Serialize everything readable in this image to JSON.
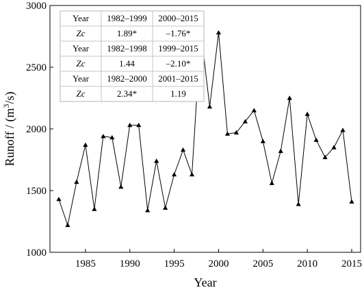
{
  "chart_data": {
    "type": "line",
    "xlabel": "Year",
    "ylabel": "Runoff / (m³/s)",
    "xlim": [
      1981,
      2016
    ],
    "ylim": [
      1000,
      3000
    ],
    "x_ticks": [
      1985,
      1990,
      1995,
      2000,
      2005,
      2010,
      2015
    ],
    "y_ticks": [
      1000,
      1500,
      2000,
      2500,
      3000
    ],
    "marker": "triangle",
    "line_color": "#000000",
    "grid": false,
    "x": [
      1982,
      1983,
      1984,
      1985,
      1986,
      1987,
      1988,
      1989,
      1990,
      1991,
      1992,
      1993,
      1994,
      1995,
      1996,
      1997,
      1998,
      1999,
      2000,
      2001,
      2002,
      2003,
      2004,
      2005,
      2006,
      2007,
      2008,
      2009,
      2010,
      2011,
      2012,
      2013,
      2014,
      2015
    ],
    "y": [
      1430,
      1220,
      1570,
      1870,
      1350,
      1940,
      1930,
      1530,
      2030,
      2030,
      1340,
      1740,
      1360,
      1630,
      1830,
      1630,
      2790,
      2180,
      2780,
      1960,
      1970,
      2060,
      2150,
      1900,
      1560,
      1820,
      2250,
      1390,
      2120,
      1910,
      1770,
      1850,
      1990,
      1410
    ],
    "inset_table": {
      "rows": [
        [
          "Year",
          "1982–1999",
          "2000–2015"
        ],
        [
          "Zc",
          "1.89*",
          "–1.76*"
        ],
        [
          "Year",
          "1982–1998",
          "1999–2015"
        ],
        [
          "Zc",
          "1.44",
          "–2.10*"
        ],
        [
          "Year",
          "1982–2000",
          "2001–2015"
        ],
        [
          "Zc",
          "2.34*",
          "1.19"
        ]
      ]
    }
  }
}
